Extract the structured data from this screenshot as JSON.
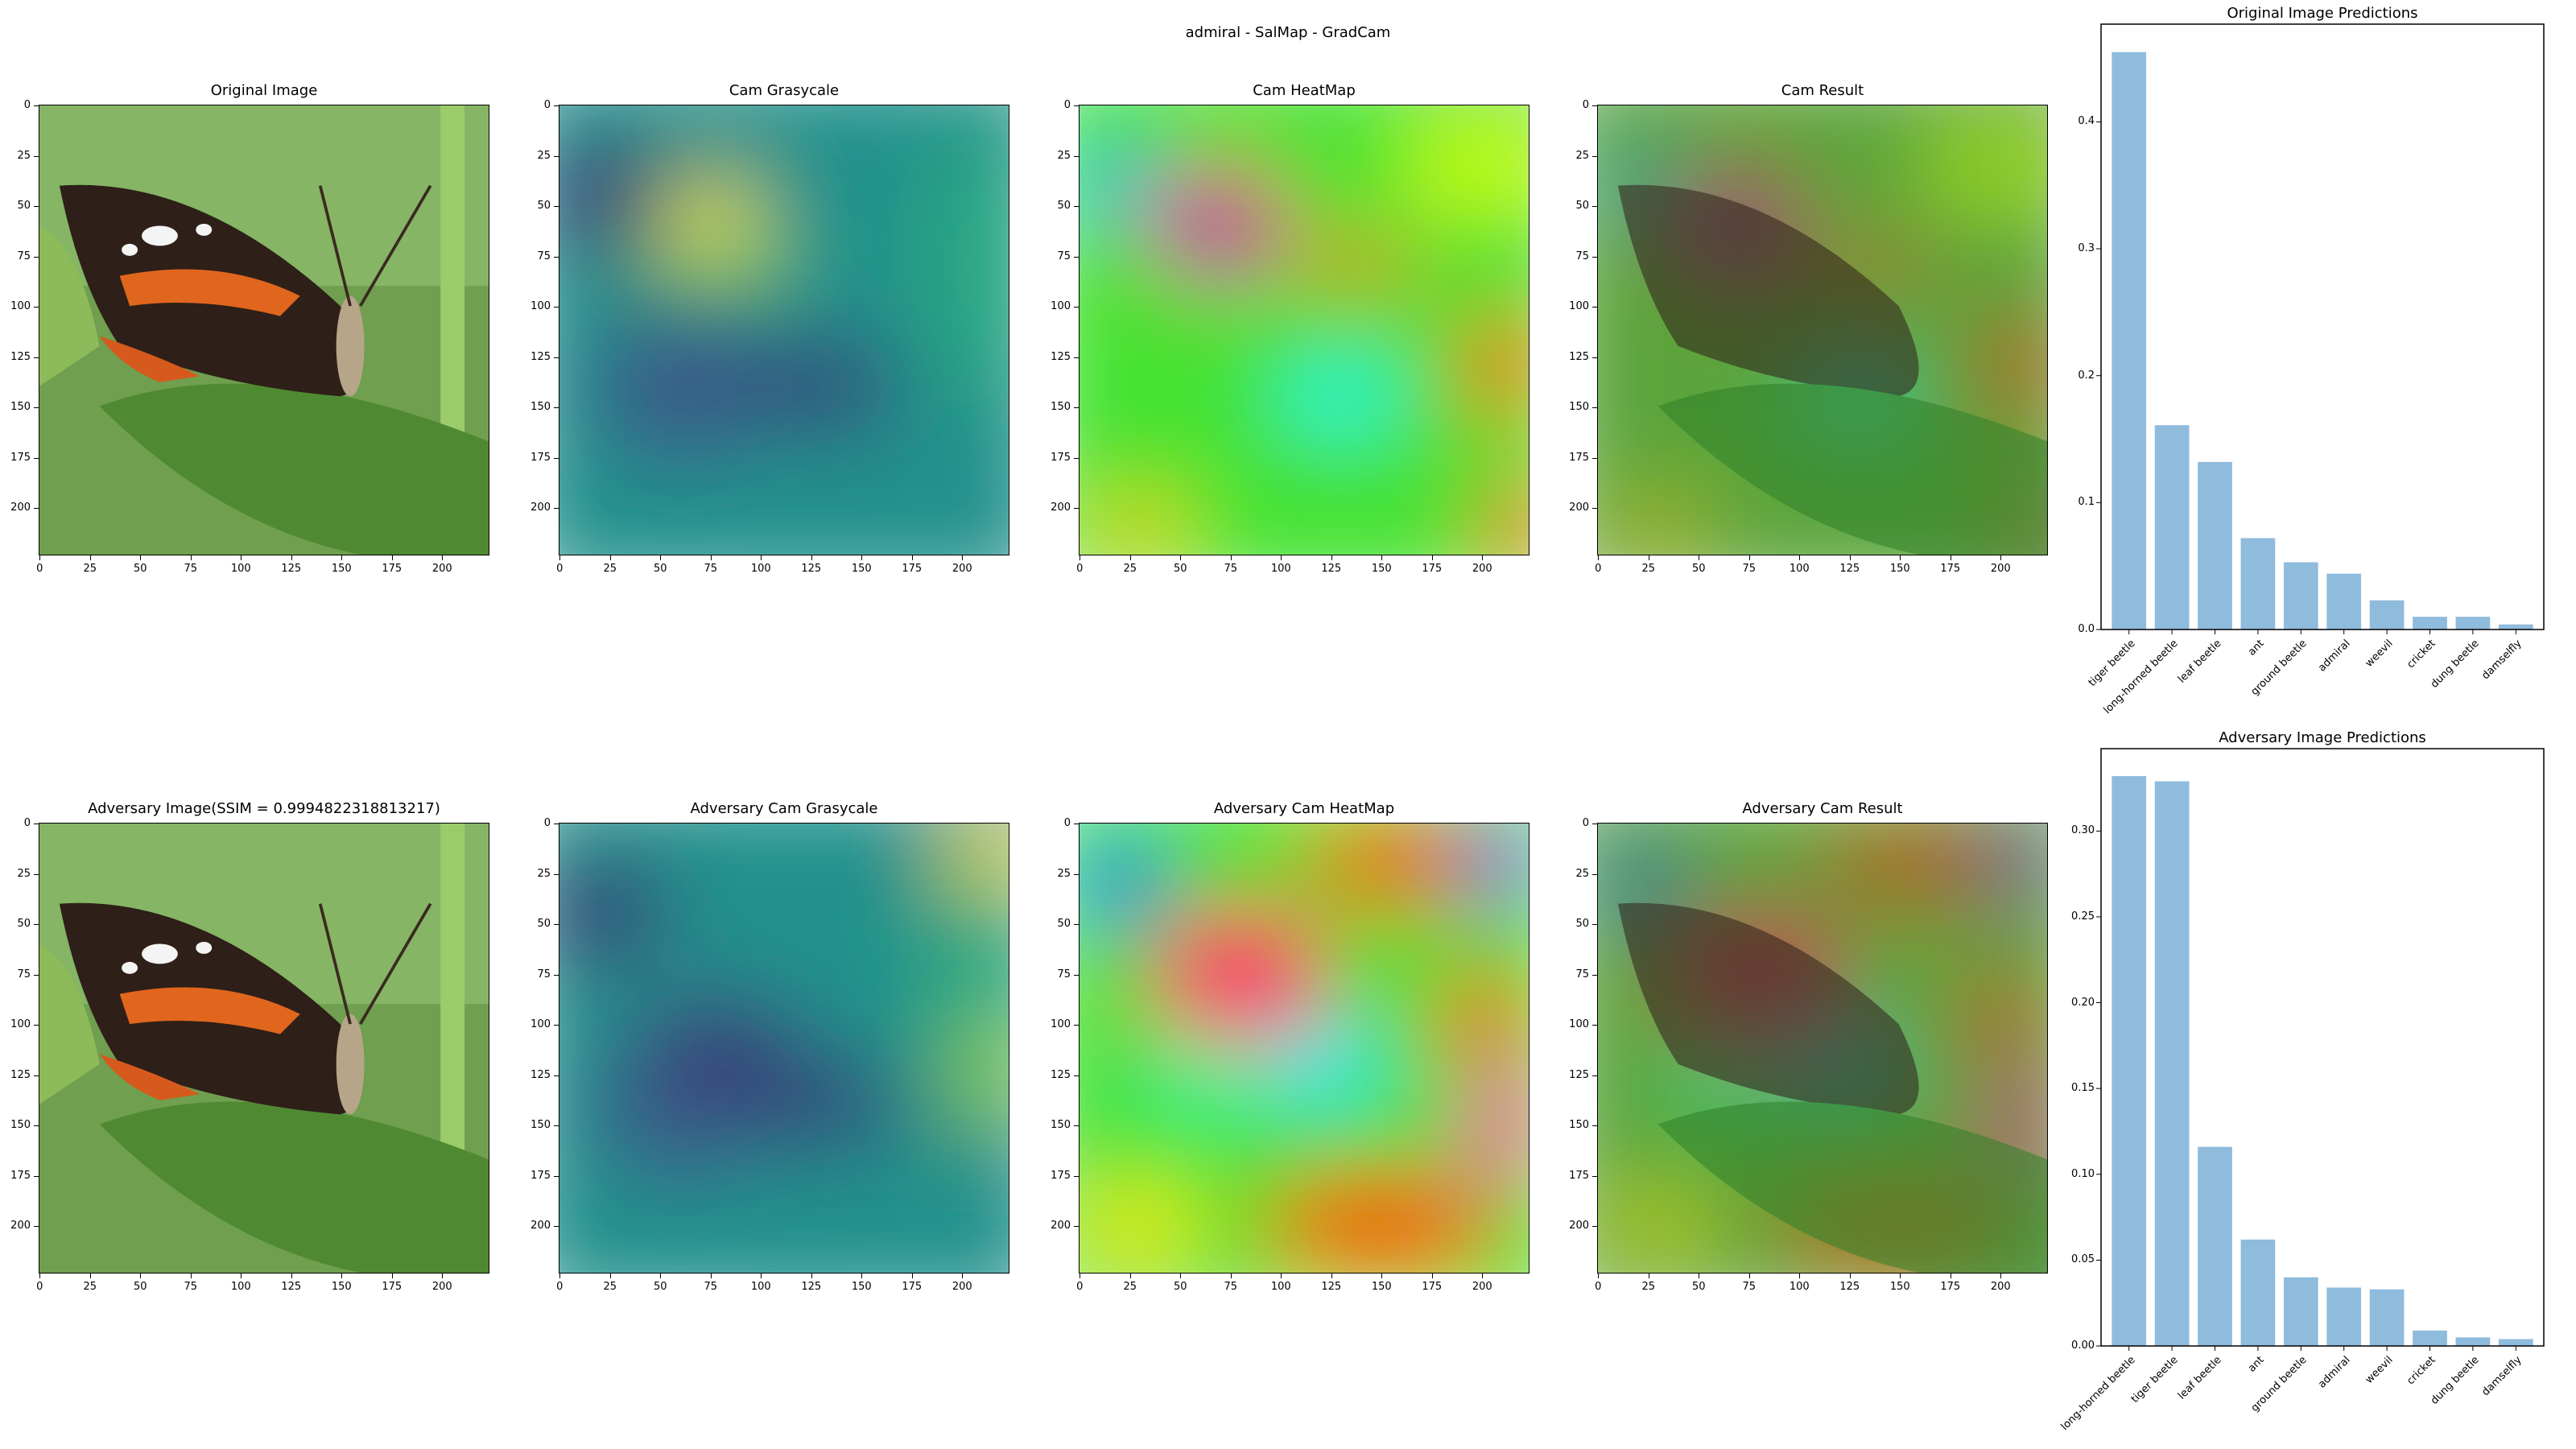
{
  "suptitle": "admiral - SalMap - GradCam",
  "image_ticks": [
    0,
    25,
    50,
    75,
    100,
    125,
    150,
    175,
    200
  ],
  "colors": {
    "bar": "#8fbbdd",
    "viridis_dark": "#3b2a74",
    "viridis_mid": "#21918c",
    "viridis_bright": "#fde725"
  },
  "panels": {
    "row1": [
      "Original Image",
      "Cam Grasycale",
      "Cam HeatMap",
      "Cam Result"
    ],
    "row2": [
      "Adversary Image(SSIM = 0.9994822318813217)",
      "Adversary Cam Grasycale",
      "Adversary Cam HeatMap",
      "Adversary Cam Result"
    ]
  },
  "chart_data": [
    {
      "type": "bar",
      "title": "Original Image Predictions",
      "categories": [
        "tiger beetle",
        "long-horned beetle",
        "leaf beetle",
        "ant",
        "ground beetle",
        "admiral",
        "weevil",
        "cricket",
        "dung beetle",
        "damselfly"
      ],
      "values": [
        0.455,
        0.161,
        0.132,
        0.072,
        0.053,
        0.044,
        0.023,
        0.01,
        0.01,
        0.004
      ],
      "yticks": [
        "0.0",
        "0.1",
        "0.2",
        "0.3",
        "0.4"
      ],
      "ytick_values": [
        0,
        0.1,
        0.2,
        0.3,
        0.4
      ],
      "ylim": [
        0,
        0.477
      ]
    },
    {
      "type": "bar",
      "title": "Adversary Image Predictions",
      "categories": [
        "long-horned beetle",
        "tiger beetle",
        "leaf beetle",
        "ant",
        "ground beetle",
        "admiral",
        "weevil",
        "cricket",
        "dung beetle",
        "damselfly"
      ],
      "values": [
        0.332,
        0.329,
        0.116,
        0.062,
        0.04,
        0.034,
        0.033,
        0.009,
        0.005,
        0.004
      ],
      "yticks": [
        "0.00",
        "0.05",
        "0.10",
        "0.15",
        "0.20",
        "0.25",
        "0.30"
      ],
      "ytick_values": [
        0,
        0.05,
        0.1,
        0.15,
        0.2,
        0.25,
        0.3
      ],
      "ylim": [
        0,
        0.348
      ]
    }
  ]
}
